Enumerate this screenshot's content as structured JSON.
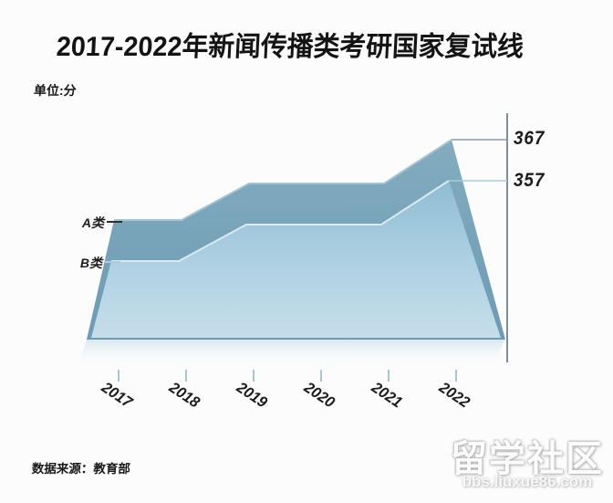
{
  "header": {
    "unit_label": "单位:分"
  },
  "chart_data": {
    "type": "area",
    "title": "2017-2022年新闻传播类考研国家复试线",
    "subtitle": "单位:分",
    "categories": [
      "2017",
      "2018",
      "2019",
      "2020",
      "2021",
      "2022"
    ],
    "series": [
      {
        "name": "A类",
        "values": [
          345,
          345,
          355,
          355,
          355,
          367
        ]
      },
      {
        "name": "B类",
        "values": [
          335,
          335,
          345,
          345,
          345,
          357
        ]
      }
    ],
    "end_labels": [
      "367",
      "357"
    ],
    "ylabel": "分",
    "grid": false,
    "legend_position": "left-inline",
    "style": "3d-perspective-area"
  },
  "footer": {
    "source": "数据来源：教育部"
  },
  "watermark": {
    "title": "留学社区",
    "url": "bbs.liuxue86.com"
  },
  "colors": {
    "series_a_top": "#83ACBF",
    "series_a_bottom": "#6C9BB4",
    "series_a_edge": "#A6C3D1",
    "series_b_top": "#8FBCD4",
    "series_b_bottom": "#C6DDEA",
    "series_b_edge": "#DAEAF2",
    "reflection": "#BCD8E8",
    "axis": "#5F7380",
    "leader_a": "#8C9AA3",
    "leader_b": "#A9CBDC",
    "tick": "#A8C6D6",
    "dash_a": "#2E2E2E",
    "dash_b": "#A9CCDE",
    "text": "#1B1B1B"
  }
}
